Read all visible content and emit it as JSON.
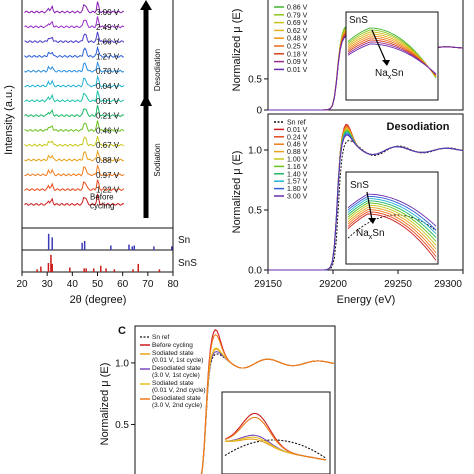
{
  "chart_data": [
    {
      "panel": "a",
      "type": "line",
      "xlabel": "2θ (degree)",
      "ylabel": "Intensity (a.u.)",
      "xlim": [
        20,
        80
      ],
      "x_ticks": [
        20,
        30,
        40,
        50,
        60,
        70,
        80
      ],
      "peaks_deg": [
        30.6,
        31.9,
        44.7,
        45.5,
        50.1,
        66.2,
        79.2
      ],
      "series": [
        {
          "name": "3.00 V",
          "color": "#8a1bb0"
        },
        {
          "name": "2.49 V",
          "color": "#9a2cc8"
        },
        {
          "name": "1.66 V",
          "color": "#4a3bc8"
        },
        {
          "name": "1.27 V",
          "color": "#2c5fd8"
        },
        {
          "name": "0.70 V",
          "color": "#2b8fe0"
        },
        {
          "name": "0.04 V",
          "color": "#22b2d6"
        },
        {
          "name": "0.01 V",
          "color": "#1cc2a8"
        },
        {
          "name": "0.21 V",
          "color": "#1db866"
        },
        {
          "name": "0.46 V",
          "color": "#6ac21f"
        },
        {
          "name": "0.67 V",
          "color": "#c8c81a"
        },
        {
          "name": "0.88 V",
          "color": "#e8a21c"
        },
        {
          "name": "0.97 V",
          "color": "#f07a1c"
        },
        {
          "name": "1.22 V",
          "color": "#e8481a"
        },
        {
          "name": "Before cycling",
          "color": "#cc1b1b"
        }
      ],
      "arrow_labels": [
        "Desodiation",
        "Sodiation"
      ],
      "reference_labels": [
        "Sn",
        "SnS"
      ],
      "reference_colors": {
        "Sn": "#3b3bb8",
        "SnS": "#cc1b1b"
      }
    },
    {
      "panel": "b-top",
      "type": "line",
      "ylabel": "Normalized μ (E)",
      "xlim": [
        29150,
        29300
      ],
      "ylim": [
        0,
        1.8
      ],
      "y_ticks": [
        0,
        0.5
      ],
      "legend": [
        {
          "name": "0.86 V",
          "color": "#3fb52c"
        },
        {
          "name": "0.79 V",
          "color": "#8cc41c"
        },
        {
          "name": "0.69 V",
          "color": "#c9c21a"
        },
        {
          "name": "0.62 V",
          "color": "#e6b020"
        },
        {
          "name": "0.48 V",
          "color": "#f09418"
        },
        {
          "name": "0.25 V",
          "color": "#ee6b1a"
        },
        {
          "name": "0.18 V",
          "color": "#d8401c"
        },
        {
          "name": "0.09 V",
          "color": "#9a2c8e"
        },
        {
          "name": "0.01 V",
          "color": "#6a2cb0"
        }
      ],
      "inset_labels": [
        "SnS",
        "NaxSn"
      ]
    },
    {
      "panel": "b-bottom",
      "type": "line",
      "title": "Desodiation",
      "xlabel": "Energy (eV)",
      "ylabel": "Normalized μ (E)",
      "xlim": [
        29150,
        29300
      ],
      "x_ticks": [
        29150,
        29200,
        29250,
        29300
      ],
      "ylim": [
        0,
        1.3
      ],
      "y_ticks": [
        0,
        0.5,
        1.0
      ],
      "legend": [
        {
          "name": "Sn ref",
          "color": "#111111",
          "dashed": true
        },
        {
          "name": "0.01 V",
          "color": "#cc1b1b"
        },
        {
          "name": "0.24 V",
          "color": "#e8481a"
        },
        {
          "name": "0.46 V",
          "color": "#f07a1c"
        },
        {
          "name": "0.88 V",
          "color": "#e8a21c"
        },
        {
          "name": "1.00 V",
          "color": "#c8c81a"
        },
        {
          "name": "1.16 V",
          "color": "#6ac21f"
        },
        {
          "name": "1.40 V",
          "color": "#1db866"
        },
        {
          "name": "1.57 V",
          "color": "#22b2d6"
        },
        {
          "name": "1.80 V",
          "color": "#2c5fd8"
        },
        {
          "name": "3.00 V",
          "color": "#6a2cb0"
        }
      ],
      "inset_labels": [
        "SnS",
        "NaxSn"
      ]
    },
    {
      "panel": "c",
      "type": "line",
      "label": "C",
      "ylabel": "Normalized μ (E)",
      "ylim": [
        0,
        1.3
      ],
      "y_ticks": [
        0.5,
        1.0
      ],
      "legend": [
        {
          "name": "Sn ref",
          "color": "#111111",
          "dashed": true
        },
        {
          "name": "Before cycling",
          "color": "#cc1b1b"
        },
        {
          "name": "Sodiated state (0.01 V, 1st cycle)",
          "color": "#e8a21c"
        },
        {
          "name": "Desodiated state (3.0 V, 1st cycle)",
          "color": "#7a4cc0"
        },
        {
          "name": "Sodiated state (0.01 V, 2nd cycle)",
          "color": "#e8c21c"
        },
        {
          "name": "Desodiated state (3.0 V, 2nd cycle)",
          "color": "#f07a1c"
        }
      ]
    }
  ],
  "text": {
    "a_sn": "Sn",
    "a_sns": "SnS",
    "a_before1": "Before",
    "a_before2": "cycling",
    "desod": "Desodiation",
    "sod": "Sodiation",
    "a_xlabel": "2θ (degree)",
    "a_ylabel": "Intensity (a.u.)",
    "b_ylabel": "Normalized μ (E)",
    "b_xlabel": "Energy (eV)",
    "b_title": "Desodiation",
    "sns": "SnS",
    "naxsn_a": "Na",
    "naxsn_x": "x",
    "naxsn_b": "Sn",
    "c_label": "C",
    "c_ylabel": "Normalized μ (E)",
    "c_leg_snref": "Sn ref",
    "c_leg_before": "Before cycling",
    "c_leg_s1a": "Sodiated state",
    "c_leg_s1b": "(0.01 V, 1st cycle)",
    "c_leg_d1a": "Desodiated state",
    "c_leg_d1b": "(3.0 V, 1st cycle)",
    "c_leg_s2a": "Sodiated state",
    "c_leg_s2b": "(0.01 V, 2nd cycle)",
    "c_leg_d2a": "Desodiated state",
    "c_leg_d2b": "(3.0 V, 2nd cycle)"
  }
}
